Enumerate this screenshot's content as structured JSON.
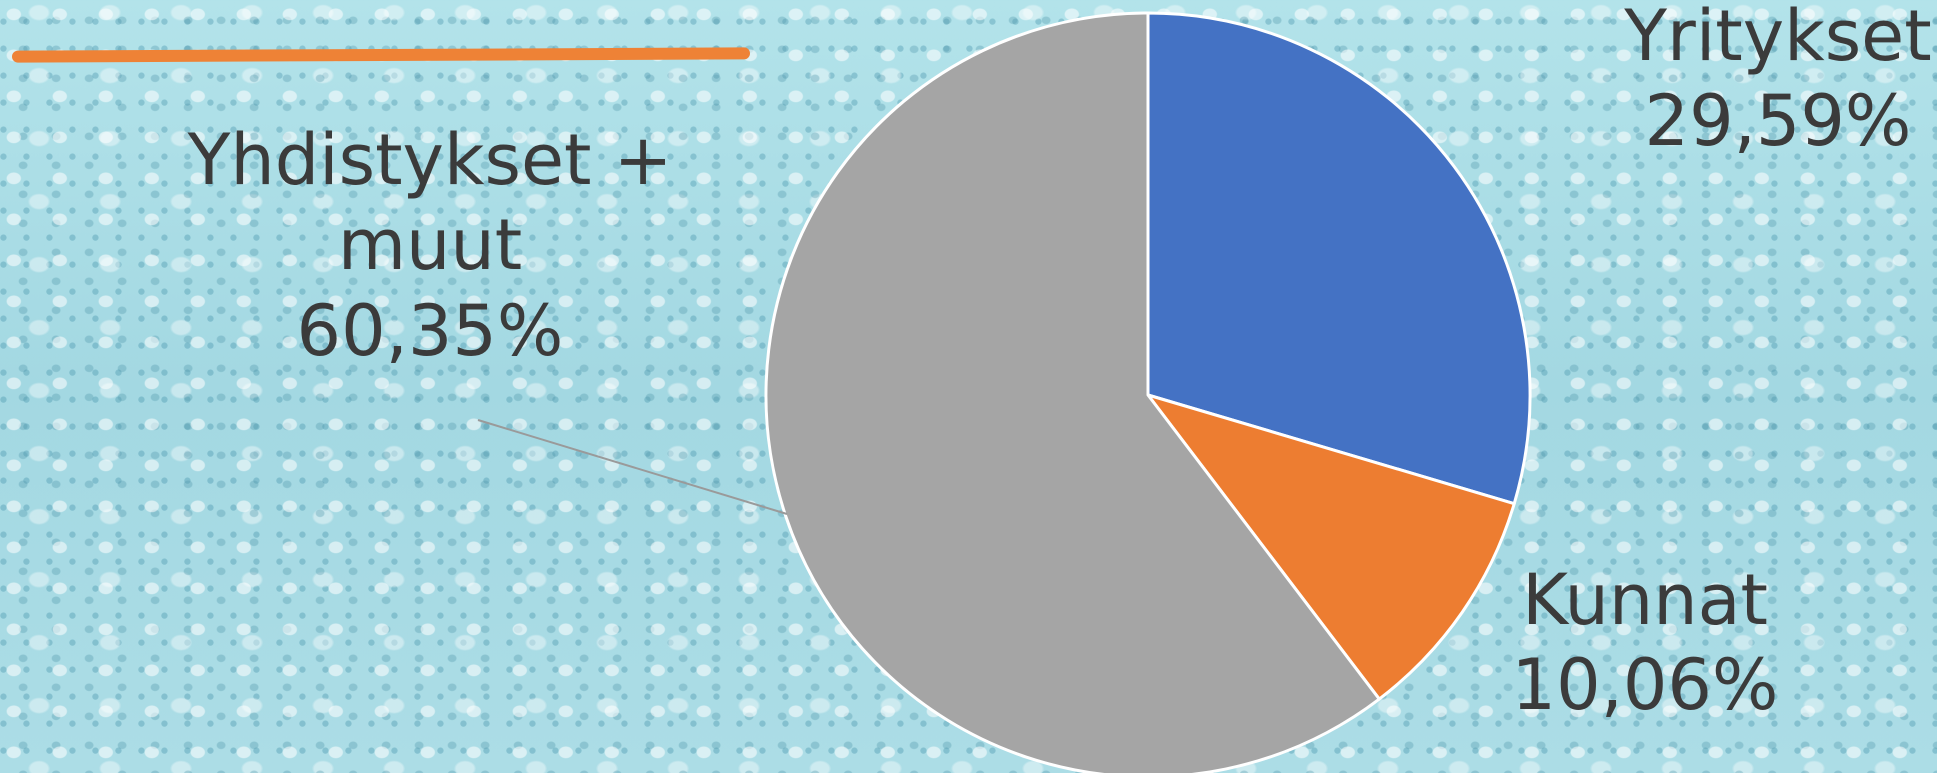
{
  "chart_data": {
    "type": "pie",
    "title": "",
    "slices": [
      {
        "name_lines": [
          "Yritykset"
        ],
        "value": 29.59,
        "value_label": "29,59%",
        "color": "#4472c4"
      },
      {
        "name_lines": [
          "Kunnat"
        ],
        "value": 10.06,
        "value_label": "10,06%",
        "color": "#ed7d31"
      },
      {
        "name_lines": [
          "Yhdistykset +",
          "muut"
        ],
        "value": 60.35,
        "value_label": "60,35%",
        "color": "#a5a5a5"
      }
    ],
    "start_angle": "12 o'clock",
    "direction": "clockwise",
    "legend": "none",
    "data_labels": "outside"
  },
  "style": {
    "slice_border_color": "#ffffff",
    "label_color": "#3b3b3b",
    "leader_line_color": "#9a9a9a",
    "decor_stroke_color": "#ee8236"
  }
}
